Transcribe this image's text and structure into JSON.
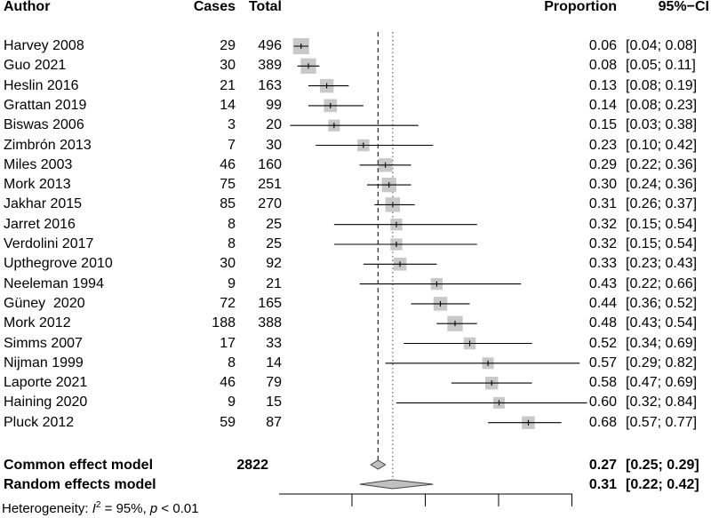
{
  "chart_data": {
    "type": "forest",
    "headers": {
      "author": "Author",
      "cases": "Cases",
      "total": "Total",
      "proportion": "Proportion",
      "ci": "95%−CI"
    },
    "x_range": [
      0,
      0.8
    ],
    "reference_lines": {
      "common": 0.27,
      "random": 0.31
    },
    "studies": [
      {
        "author": "Harvey 2008",
        "cases": "29",
        "total": "496",
        "prop": 0.06,
        "lo": 0.04,
        "hi": 0.08,
        "prop_label": "0.06",
        "ci_label": "[0.04; 0.08]"
      },
      {
        "author": "Guo 2021",
        "cases": "30",
        "total": "389",
        "prop": 0.08,
        "lo": 0.05,
        "hi": 0.11,
        "prop_label": "0.08",
        "ci_label": "[0.05; 0.11]"
      },
      {
        "author": "Heslin 2016",
        "cases": "21",
        "total": "163",
        "prop": 0.13,
        "lo": 0.08,
        "hi": 0.19,
        "prop_label": "0.13",
        "ci_label": "[0.08; 0.19]"
      },
      {
        "author": "Grattan 2019",
        "cases": "14",
        "total": "99",
        "prop": 0.14,
        "lo": 0.08,
        "hi": 0.23,
        "prop_label": "0.14",
        "ci_label": "[0.08; 0.23]"
      },
      {
        "author": "Biswas 2006",
        "cases": "3",
        "total": "20",
        "prop": 0.15,
        "lo": 0.03,
        "hi": 0.38,
        "prop_label": "0.15",
        "ci_label": "[0.03; 0.38]"
      },
      {
        "author": "Zimbrón 2013",
        "cases": "7",
        "total": "30",
        "prop": 0.23,
        "lo": 0.1,
        "hi": 0.42,
        "prop_label": "0.23",
        "ci_label": "[0.10; 0.42]"
      },
      {
        "author": "Miles 2003",
        "cases": "46",
        "total": "160",
        "prop": 0.29,
        "lo": 0.22,
        "hi": 0.36,
        "prop_label": "0.29",
        "ci_label": "[0.22; 0.36]"
      },
      {
        "author": "Mork 2013",
        "cases": "75",
        "total": "251",
        "prop": 0.3,
        "lo": 0.24,
        "hi": 0.36,
        "prop_label": "0.30",
        "ci_label": "[0.24; 0.36]"
      },
      {
        "author": "Jakhar 2015",
        "cases": "85",
        "total": "270",
        "prop": 0.31,
        "lo": 0.26,
        "hi": 0.37,
        "prop_label": "0.31",
        "ci_label": "[0.26; 0.37]"
      },
      {
        "author": "Jarret 2016",
        "cases": "8",
        "total": "25",
        "prop": 0.32,
        "lo": 0.15,
        "hi": 0.54,
        "prop_label": "0.32",
        "ci_label": "[0.15; 0.54]"
      },
      {
        "author": "Verdolini 2017",
        "cases": "8",
        "total": "25",
        "prop": 0.32,
        "lo": 0.15,
        "hi": 0.54,
        "prop_label": "0.32",
        "ci_label": "[0.15; 0.54]"
      },
      {
        "author": "Upthegrove 2010",
        "cases": "30",
        "total": "92",
        "prop": 0.33,
        "lo": 0.23,
        "hi": 0.43,
        "prop_label": "0.33",
        "ci_label": "[0.23; 0.43]"
      },
      {
        "author": "Neeleman 1994",
        "cases": "9",
        "total": "21",
        "prop": 0.43,
        "lo": 0.22,
        "hi": 0.66,
        "prop_label": "0.43",
        "ci_label": "[0.22; 0.66]"
      },
      {
        "author": "Güney  2020",
        "cases": "72",
        "total": "165",
        "prop": 0.44,
        "lo": 0.36,
        "hi": 0.52,
        "prop_label": "0.44",
        "ci_label": "[0.36; 0.52]"
      },
      {
        "author": "Mork 2012",
        "cases": "188",
        "total": "388",
        "prop": 0.48,
        "lo": 0.43,
        "hi": 0.54,
        "prop_label": "0.48",
        "ci_label": "[0.43; 0.54]"
      },
      {
        "author": "Simms 2007",
        "cases": "17",
        "total": "33",
        "prop": 0.52,
        "lo": 0.34,
        "hi": 0.69,
        "prop_label": "0.52",
        "ci_label": "[0.34; 0.69]"
      },
      {
        "author": "Nijman 1999",
        "cases": "8",
        "total": "14",
        "prop": 0.57,
        "lo": 0.29,
        "hi": 0.82,
        "prop_label": "0.57",
        "ci_label": "[0.29; 0.82]"
      },
      {
        "author": "Laporte 2021",
        "cases": "46",
        "total": "79",
        "prop": 0.58,
        "lo": 0.47,
        "hi": 0.69,
        "prop_label": "0.58",
        "ci_label": "[0.47; 0.69]"
      },
      {
        "author": "Haining 2020",
        "cases": "9",
        "total": "15",
        "prop": 0.6,
        "lo": 0.32,
        "hi": 0.84,
        "prop_label": "0.60",
        "ci_label": "[0.32; 0.84]"
      },
      {
        "author": "Pluck 2012",
        "cases": "59",
        "total": "87",
        "prop": 0.68,
        "lo": 0.57,
        "hi": 0.77,
        "prop_label": "0.68",
        "ci_label": "[0.57; 0.77]"
      }
    ],
    "common_model": {
      "label": "Common effect model",
      "total": "2822",
      "prop": 0.27,
      "lo": 0.25,
      "hi": 0.29,
      "prop_label": "0.27",
      "ci_label": "[0.25; 0.29]"
    },
    "random_model": {
      "label": "Random effects model",
      "prop": 0.31,
      "lo": 0.22,
      "hi": 0.42,
      "prop_label": "0.31",
      "ci_label": "[0.22; 0.42]"
    },
    "heterogeneity": {
      "prefix": "Heterogeneity: ",
      "i2_symbol": "I",
      "i2_exp": "2",
      "i2_value": " = 95%, ",
      "p_symbol": "p",
      "p_value": " < 0.01"
    },
    "colors": {
      "square": "#c8c8c8",
      "diamond": "#c0c0c0",
      "line": "#000000"
    }
  }
}
